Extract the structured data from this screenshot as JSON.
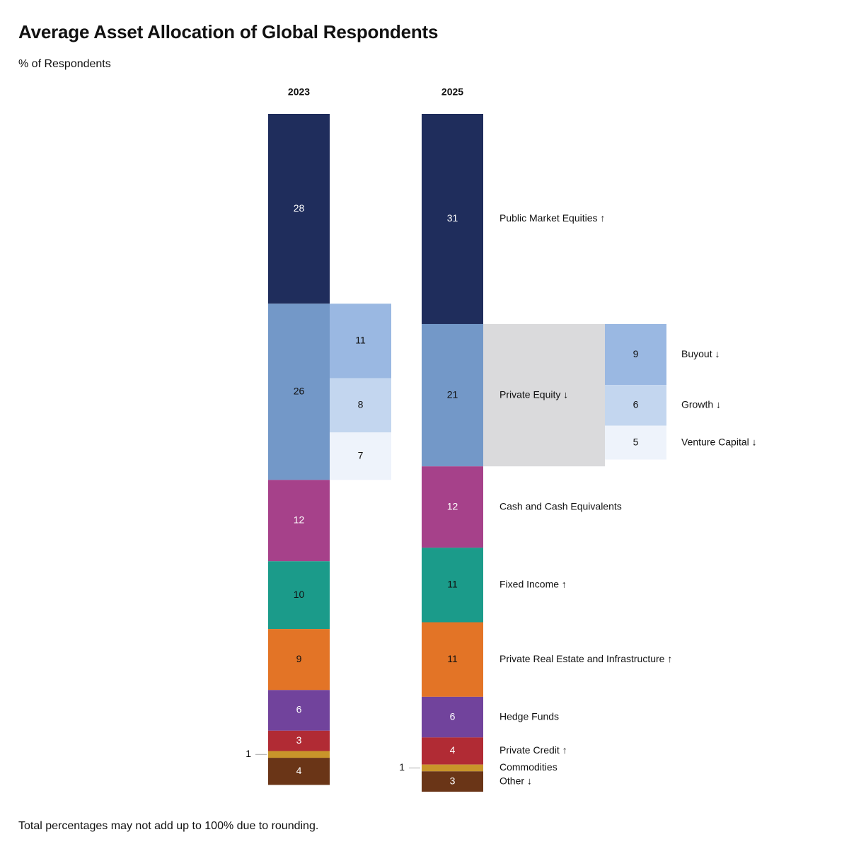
{
  "title": "Average Asset Allocation of Global Respondents",
  "subtitle": "% of Respondents",
  "footnote": "Total percentages may not add up to 100% due to rounding.",
  "chart_data": {
    "type": "bar",
    "stacked": true,
    "orientation": "vertical",
    "unit": "% of respondents",
    "categories": [
      "2023",
      "2025"
    ],
    "series": [
      {
        "name": "Public Market Equities",
        "trend": "↑",
        "color": "#1f2d5c",
        "label_color": "#ffffff",
        "values": [
          28,
          31
        ]
      },
      {
        "name": "Private Equity",
        "trend": "↓",
        "color": "#7398c8",
        "label_color": "#111111",
        "values": [
          26,
          21
        ]
      },
      {
        "name": "Cash and Cash Equivalents",
        "trend": "",
        "color": "#a6418a",
        "label_color": "#ffffff",
        "values": [
          12,
          12
        ]
      },
      {
        "name": "Fixed Income",
        "trend": "↑",
        "color": "#1b9b8a",
        "label_color": "#111111",
        "values": [
          10,
          11
        ]
      },
      {
        "name": "Private Real Estate and Infrastructure",
        "trend": "↑",
        "color": "#e37426",
        "label_color": "#111111",
        "values": [
          9,
          11
        ]
      },
      {
        "name": "Hedge Funds",
        "trend": "",
        "color": "#71439c",
        "label_color": "#ffffff",
        "values": [
          6,
          6
        ]
      },
      {
        "name": "Private Credit",
        "trend": "↑",
        "color": "#b12b34",
        "label_color": "#ffffff",
        "values": [
          3,
          4
        ]
      },
      {
        "name": "Commodities",
        "trend": "",
        "color": "#c9952a",
        "label_color": "#111111",
        "values": [
          1,
          1
        ],
        "label_outside": true
      },
      {
        "name": "Other",
        "trend": "↓",
        "color": "#6a3517",
        "label_color": "#ffffff",
        "values": [
          4,
          3
        ]
      }
    ],
    "breakdown": {
      "parent": "Private Equity",
      "series": [
        {
          "name": "Buyout",
          "trend": "↓",
          "color": "#9ab8e2",
          "values": [
            11,
            9
          ]
        },
        {
          "name": "Growth",
          "trend": "↓",
          "color": "#c3d6ef",
          "values": [
            8,
            6
          ]
        },
        {
          "name": "Venture Capital",
          "trend": "↓",
          "color": "#eef3fb",
          "values": [
            7,
            5
          ]
        }
      ],
      "highlight_color": "#dadadc"
    }
  }
}
